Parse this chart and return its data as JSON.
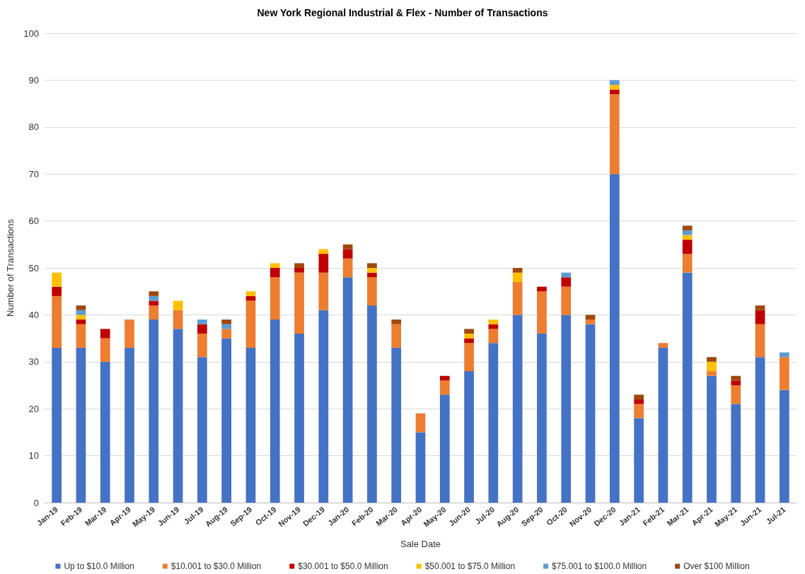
{
  "chart_data": {
    "type": "bar",
    "title": "New York Regional Industrial & Flex - Number of Transactions",
    "xlabel": "Sale Date",
    "ylabel": "Number of Transactions",
    "categories": [
      "Jan-19",
      "Feb-19",
      "Mar-19",
      "Apr-19",
      "May-19",
      "Jun-19",
      "Jul-19",
      "Aug-19",
      "Sep-19",
      "Oct-19",
      "Nov-19",
      "Dec-19",
      "Jan-20",
      "Feb-20",
      "Mar-20",
      "Apr-20",
      "May-20",
      "Jun-20",
      "Jul-20",
      "Aug-20",
      "Sep-20",
      "Oct-20",
      "Nov-20",
      "Dec-20",
      "Jan-21",
      "Feb-21",
      "Mar-21",
      "Apr-21",
      "May-21",
      "Jun-21",
      "Jul-21"
    ],
    "series": [
      {
        "name": "Up to $10.0 Million",
        "color": "#4472c4",
        "values": [
          33,
          33,
          30,
          33,
          39,
          37,
          31,
          35,
          33,
          39,
          36,
          41,
          48,
          42,
          33,
          15,
          23,
          28,
          34,
          40,
          36,
          40,
          38,
          70,
          18,
          33,
          49,
          27,
          21,
          31,
          24
        ]
      },
      {
        "name": "$10.001 to $30.0 Million",
        "color": "#ed7d31",
        "values": [
          11,
          5,
          5,
          6,
          3,
          4,
          5,
          2,
          10,
          9,
          13,
          8,
          4,
          6,
          5,
          4,
          3,
          6,
          3,
          7,
          9,
          6,
          1,
          17,
          3,
          1,
          4,
          1,
          4,
          7,
          7
        ]
      },
      {
        "name": "$30.001 to $50.0 Million",
        "color": "#c00000",
        "values": [
          2,
          1,
          2,
          0,
          1,
          0,
          2,
          0,
          1,
          2,
          1,
          4,
          2,
          1,
          0,
          0,
          1,
          1,
          1,
          0,
          1,
          2,
          0,
          1,
          1,
          0,
          3,
          0,
          1,
          3,
          0
        ]
      },
      {
        "name": "$50.001 to $75.0 Million",
        "color": "#ffc000",
        "values": [
          3,
          1,
          0,
          0,
          0,
          2,
          0,
          0,
          1,
          1,
          0,
          1,
          0,
          1,
          0,
          0,
          0,
          1,
          1,
          2,
          0,
          0,
          0,
          1,
          0,
          0,
          1,
          2,
          0,
          0,
          0
        ]
      },
      {
        "name": "$75.001 to $100.0 Million",
        "color": "#5b9bd5",
        "values": [
          0,
          1,
          0,
          0,
          1,
          0,
          1,
          1,
          0,
          0,
          0,
          0,
          0,
          0,
          0,
          0,
          0,
          0,
          0,
          0,
          0,
          1,
          0,
          1,
          0,
          0,
          1,
          0,
          0,
          0,
          1
        ]
      },
      {
        "name": "Over $100 Million",
        "color": "#9e480e",
        "values": [
          0,
          1,
          0,
          0,
          1,
          0,
          0,
          1,
          0,
          0,
          1,
          0,
          1,
          1,
          1,
          0,
          0,
          1,
          0,
          1,
          0,
          0,
          1,
          0,
          1,
          0,
          1,
          1,
          1,
          1,
          0
        ]
      }
    ],
    "stacked": true,
    "ylim": [
      0,
      100
    ],
    "yticks": [
      0,
      10,
      20,
      30,
      40,
      50,
      60,
      70,
      80,
      90,
      100
    ],
    "grid": "y",
    "legend": "bottom"
  }
}
